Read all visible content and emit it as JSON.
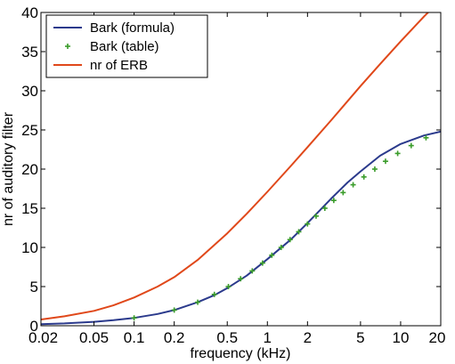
{
  "chart_data": {
    "type": "line",
    "title": "",
    "xlabel": "frequency (kHz)",
    "ylabel": "nr of auditory filter",
    "x_scale": "log",
    "xlim": [
      0.02,
      20
    ],
    "ylim": [
      0,
      40
    ],
    "grid": false,
    "legend_position": "top-left",
    "x_ticks": [
      {
        "value": 0.02,
        "label": "0.02"
      },
      {
        "value": 0.05,
        "label": "0.05"
      },
      {
        "value": 0.1,
        "label": "0.1"
      },
      {
        "value": 0.2,
        "label": "0.2"
      },
      {
        "value": 0.5,
        "label": "0.5"
      },
      {
        "value": 1,
        "label": "1"
      },
      {
        "value": 2,
        "label": "2"
      },
      {
        "value": 5,
        "label": "5"
      },
      {
        "value": 10,
        "label": "10"
      },
      {
        "value": 20,
        "label": "20"
      }
    ],
    "y_ticks": [
      {
        "value": 0,
        "label": "0"
      },
      {
        "value": 5,
        "label": "5"
      },
      {
        "value": 10,
        "label": "10"
      },
      {
        "value": 15,
        "label": "15"
      },
      {
        "value": 20,
        "label": "20"
      },
      {
        "value": 25,
        "label": "25"
      },
      {
        "value": 30,
        "label": "30"
      },
      {
        "value": 35,
        "label": "35"
      },
      {
        "value": 40,
        "label": "40"
      }
    ],
    "series": [
      {
        "name": "Bark (formula)",
        "style": "line",
        "color": "#2b3a8c",
        "x": [
          0.02,
          0.03,
          0.05,
          0.07,
          0.1,
          0.15,
          0.2,
          0.3,
          0.4,
          0.5,
          0.7,
          1.0,
          1.5,
          2.0,
          3.0,
          4.0,
          5.0,
          7.0,
          10.0,
          15.0,
          20.0
        ],
        "y": [
          0.2,
          0.3,
          0.5,
          0.7,
          1.0,
          1.5,
          2.0,
          3.0,
          3.9,
          4.8,
          6.4,
          8.5,
          11.0,
          13.1,
          16.2,
          18.3,
          19.7,
          21.7,
          23.2,
          24.3,
          24.8
        ]
      },
      {
        "name": "Bark (table)",
        "style": "marker",
        "marker": "+",
        "color": "#3a9c2a",
        "x": [
          0.1,
          0.2,
          0.3,
          0.4,
          0.51,
          0.63,
          0.77,
          0.92,
          1.08,
          1.27,
          1.48,
          1.72,
          2.0,
          2.32,
          2.7,
          3.15,
          3.7,
          4.4,
          5.3,
          6.4,
          7.7,
          9.5,
          12.0,
          15.5
        ],
        "y": [
          1,
          2,
          3,
          4,
          5,
          6,
          7,
          8,
          9,
          10,
          11,
          12,
          13,
          14,
          15,
          16,
          17,
          18,
          19,
          20,
          21,
          22,
          23,
          24
        ]
      },
      {
        "name": "nr of ERB",
        "style": "line",
        "color": "#e0481a",
        "x": [
          0.02,
          0.03,
          0.05,
          0.07,
          0.1,
          0.15,
          0.2,
          0.3,
          0.5,
          0.7,
          1.0,
          1.5,
          2.0,
          3.0,
          5.0,
          7.0,
          10.0,
          15.0,
          20.0
        ],
        "y": [
          0.8,
          1.2,
          1.9,
          2.6,
          3.6,
          5.0,
          6.2,
          8.4,
          11.8,
          14.3,
          17.1,
          20.4,
          22.8,
          26.2,
          30.6,
          33.4,
          36.3,
          39.5,
          41.6
        ]
      }
    ]
  }
}
